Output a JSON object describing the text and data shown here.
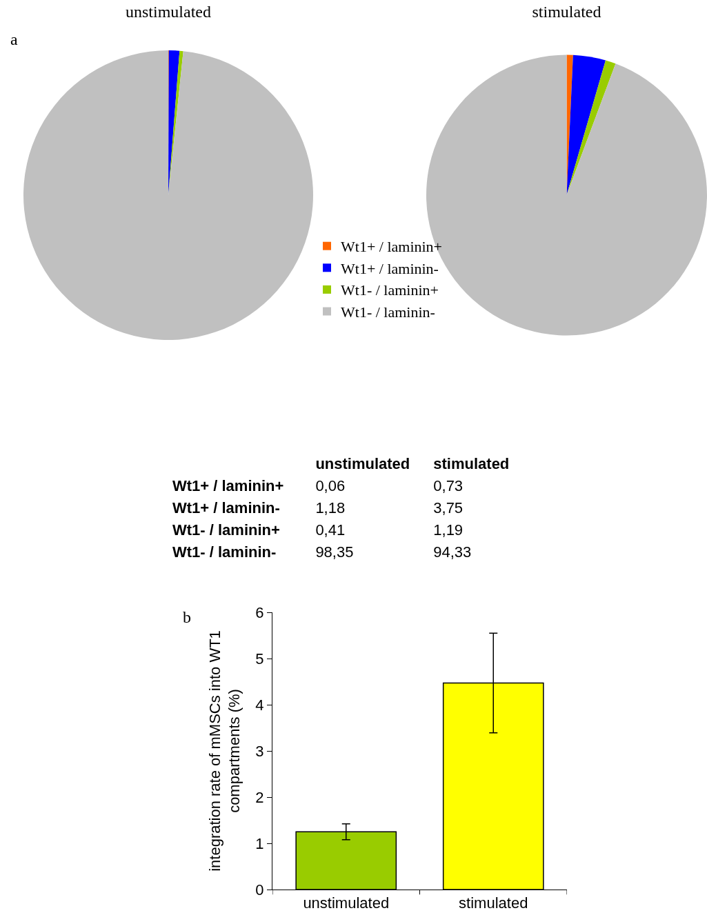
{
  "chart_data": [
    {
      "type": "pie",
      "title": "unstimulated",
      "annotations": [
        "a"
      ],
      "categories": [
        "Wt1+ / laminin+",
        "Wt1+ / laminin-",
        "Wt1- / laminin+",
        "Wt1- / laminin-"
      ],
      "values": [
        0.06,
        1.18,
        0.41,
        98.35
      ],
      "colors": [
        "#ff6600",
        "#0000ff",
        "#99cc00",
        "#c0c0c0"
      ],
      "legend": "bottom right"
    },
    {
      "type": "pie",
      "title": "stimulated",
      "categories": [
        null,
        null,
        null,
        null
      ],
      "values": [
        0.73,
        3.75,
        1.19,
        94.33
      ],
      "colors": [
        "#ff6600",
        "#0000ff",
        "#99cc00",
        "#c0c0c0"
      ]
    },
    {
      "type": "other",
      "categories": [
        "Wt1+ / laminin+",
        "Wt1+ / laminin-",
        "Wt1- / laminin+",
        "Wt1- / laminin-"
      ],
      "series": [
        {
          "name": "unstimulated",
          "values": [
            0.06,
            1.18,
            0.41,
            98.35
          ],
          "value_labels": [
            "0,06",
            "1,18",
            "0,41",
            "98,35"
          ]
        },
        {
          "name": "stimulated",
          "values": [
            0.73,
            3.75,
            1.19,
            94.33
          ],
          "value_labels": [
            "0,73",
            "3,75",
            "1,19",
            "94,33"
          ]
        }
      ]
    },
    {
      "type": "bar",
      "annotations": [
        "b"
      ],
      "ylabel": "integration rate of mMSCs into WT1\ncompartments (%)",
      "categories": [
        "unstimulated",
        "stimulated"
      ],
      "values": [
        1.25,
        4.47
      ],
      "colors": [
        "#99cc00",
        "#ffff00"
      ],
      "errors": [
        0.17,
        1.08
      ],
      "ylim": [
        0,
        6
      ],
      "yticks": [
        0,
        1,
        2,
        3,
        4,
        5,
        6
      ],
      "grid": false
    }
  ]
}
